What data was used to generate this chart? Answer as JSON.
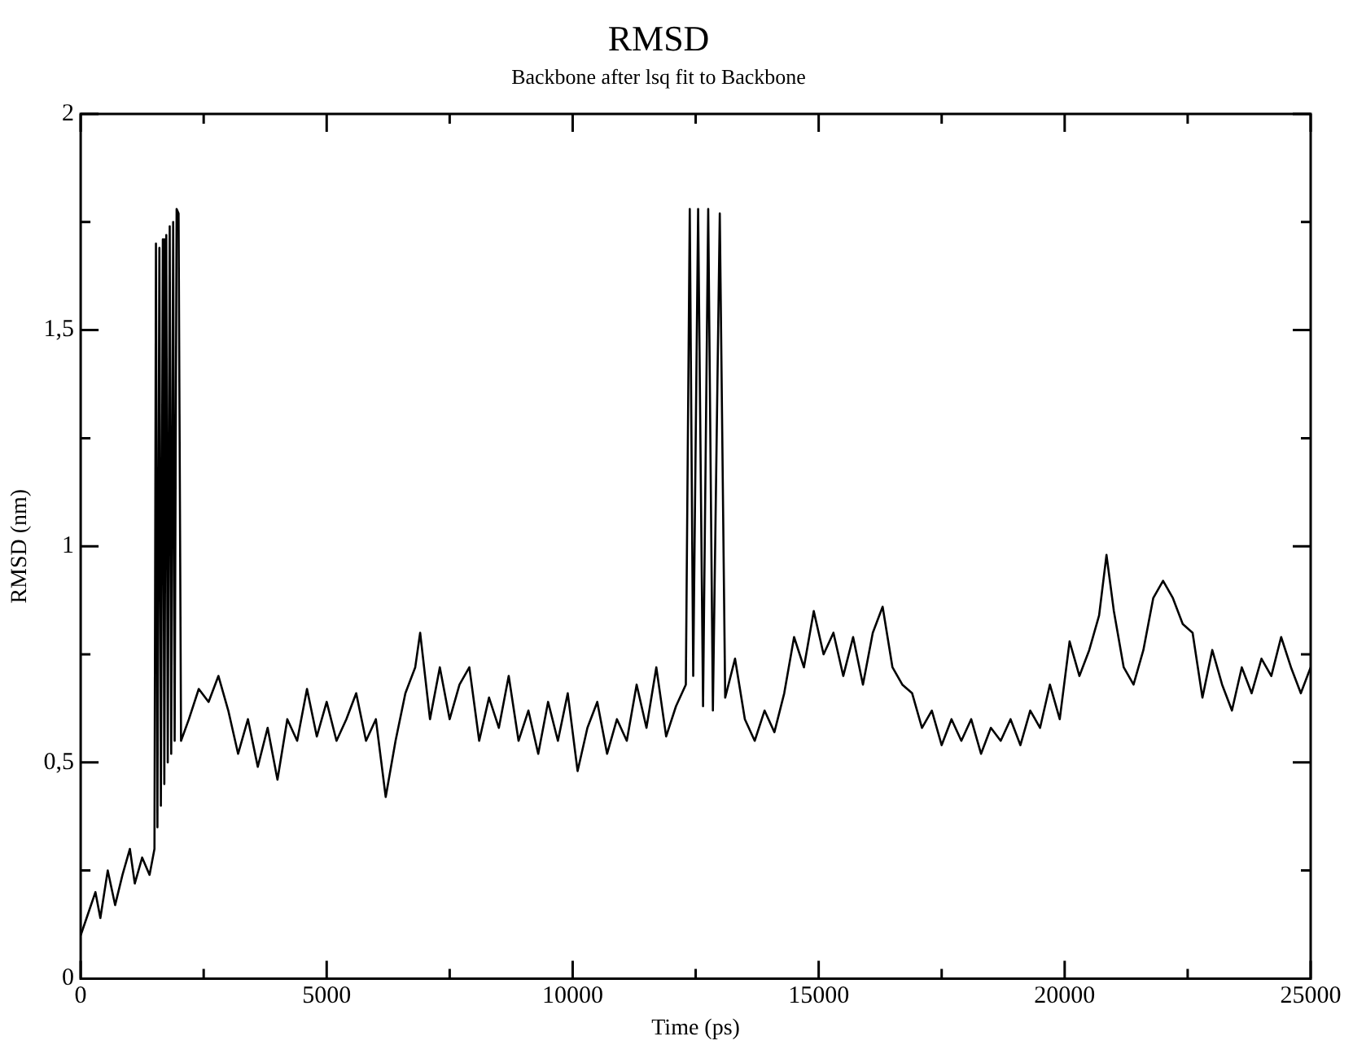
{
  "chart_data": {
    "type": "line",
    "title": "RMSD",
    "subtitle": "Backbone after lsq fit to Backbone",
    "xlabel": "Time (ps)",
    "ylabel": "RMSD (nm)",
    "x": [
      0,
      150,
      300,
      400,
      550,
      700,
      850,
      1000,
      1100,
      1250,
      1400,
      1500,
      1530,
      1560,
      1600,
      1630,
      1670,
      1700,
      1740,
      1770,
      1810,
      1840,
      1880,
      1910,
      1950,
      1990,
      2040,
      2200,
      2400,
      2600,
      2800,
      3000,
      3200,
      3400,
      3600,
      3800,
      4000,
      4200,
      4400,
      4600,
      4800,
      5000,
      5200,
      5400,
      5600,
      5800,
      6000,
      6200,
      6400,
      6600,
      6800,
      6900,
      7100,
      7300,
      7500,
      7700,
      7900,
      8100,
      8300,
      8500,
      8700,
      8900,
      9100,
      9300,
      9500,
      9700,
      9900,
      10100,
      10300,
      10500,
      10700,
      10900,
      11100,
      11300,
      11500,
      11700,
      11900,
      12100,
      12300,
      12380,
      12450,
      12550,
      12650,
      12755,
      12850,
      12990,
      13100,
      13300,
      13500,
      13700,
      13900,
      14100,
      14300,
      14500,
      14700,
      14900,
      15100,
      15300,
      15500,
      15700,
      15900,
      16100,
      16300,
      16500,
      16700,
      16900,
      17100,
      17300,
      17500,
      17700,
      17900,
      18100,
      18300,
      18500,
      18700,
      18900,
      19100,
      19300,
      19500,
      19700,
      19900,
      20100,
      20300,
      20500,
      20700,
      20850,
      21000,
      21200,
      21400,
      21600,
      21800,
      22000,
      22200,
      22400,
      22600,
      22800,
      23000,
      23200,
      23400,
      23600,
      23800,
      24000,
      24200,
      24400,
      24600,
      24800,
      25000
    ],
    "series": [
      {
        "color": "#000000",
        "values": [
          0.1,
          0.15,
          0.2,
          0.14,
          0.25,
          0.17,
          0.24,
          0.3,
          0.22,
          0.28,
          0.24,
          0.3,
          1.7,
          0.35,
          1.69,
          0.4,
          1.71,
          0.45,
          1.72,
          0.5,
          1.74,
          0.52,
          1.75,
          0.55,
          1.78,
          1.77,
          0.55,
          0.6,
          0.67,
          0.64,
          0.7,
          0.62,
          0.52,
          0.6,
          0.49,
          0.58,
          0.46,
          0.6,
          0.55,
          0.67,
          0.56,
          0.64,
          0.55,
          0.6,
          0.66,
          0.55,
          0.6,
          0.42,
          0.55,
          0.66,
          0.72,
          0.8,
          0.6,
          0.72,
          0.6,
          0.68,
          0.72,
          0.55,
          0.65,
          0.58,
          0.7,
          0.55,
          0.62,
          0.52,
          0.64,
          0.55,
          0.66,
          0.48,
          0.58,
          0.64,
          0.52,
          0.6,
          0.55,
          0.68,
          0.58,
          0.72,
          0.56,
          0.63,
          0.68,
          1.78,
          0.7,
          1.78,
          0.63,
          1.78,
          0.62,
          1.77,
          0.65,
          0.74,
          0.6,
          0.55,
          0.62,
          0.57,
          0.66,
          0.79,
          0.72,
          0.85,
          0.75,
          0.8,
          0.7,
          0.79,
          0.68,
          0.8,
          0.86,
          0.72,
          0.68,
          0.66,
          0.58,
          0.62,
          0.54,
          0.6,
          0.55,
          0.6,
          0.52,
          0.58,
          0.55,
          0.6,
          0.54,
          0.62,
          0.58,
          0.68,
          0.6,
          0.78,
          0.7,
          0.76,
          0.84,
          0.98,
          0.85,
          0.72,
          0.68,
          0.76,
          0.88,
          0.92,
          0.88,
          0.82,
          0.8,
          0.65,
          0.76,
          0.68,
          0.62,
          0.72,
          0.66,
          0.74,
          0.7,
          0.79,
          0.72,
          0.66,
          0.72
        ]
      }
    ],
    "xlim": [
      0,
      25000
    ],
    "xticks": [
      0,
      {
        "value": 2500,
        "label": null
      },
      5000,
      {
        "value": 7500,
        "label": null
      },
      10000,
      {
        "value": 12500,
        "label": null
      },
      15000,
      {
        "value": 17500,
        "label": null
      },
      20000,
      {
        "value": 22500,
        "label": null
      },
      25000
    ],
    "ylim": [
      0,
      2
    ],
    "yticks": [
      0,
      {
        "value": 0.25,
        "label": null
      },
      {
        "value": 0.5,
        "label": "0,5"
      },
      {
        "value": 0.75,
        "label": null
      },
      1,
      {
        "value": 1.25,
        "label": null
      },
      {
        "value": 1.5,
        "label": "1,5"
      },
      {
        "value": 1.75,
        "label": null
      },
      2
    ],
    "grid": false,
    "legend": false,
    "marker": "none",
    "line_style": "solid"
  }
}
